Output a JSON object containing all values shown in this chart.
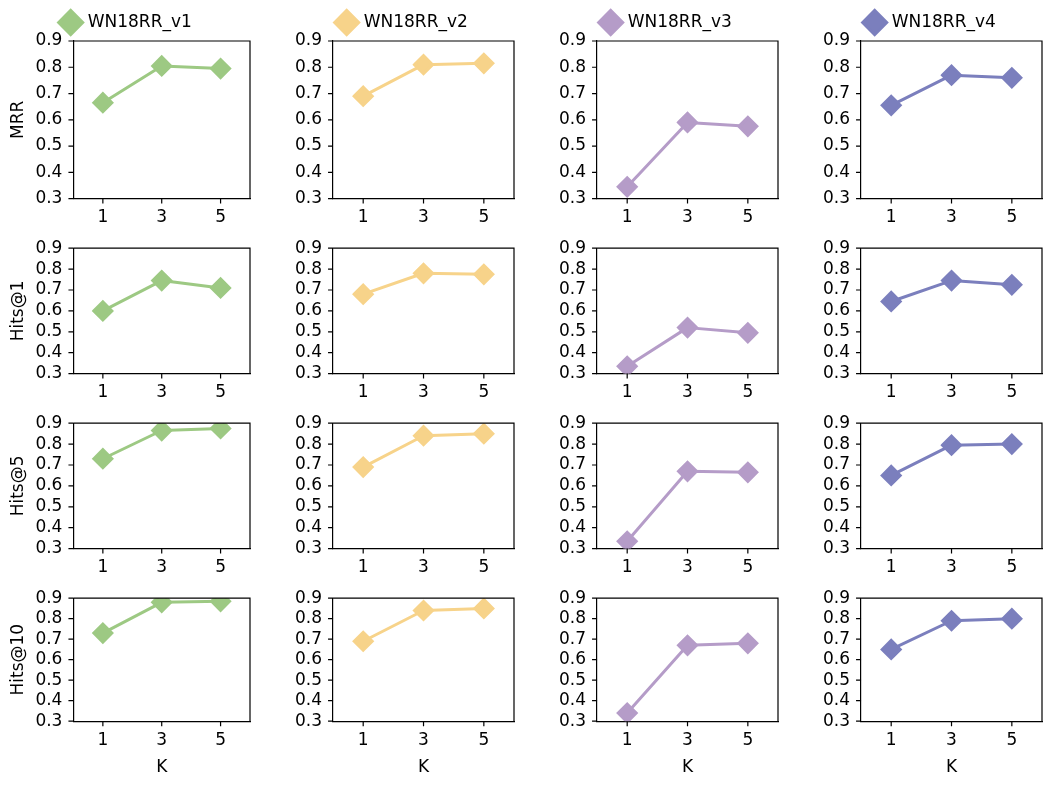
{
  "chart_data": [
    {
      "type": "line",
      "categories": [
        "1",
        "3",
        "5"
      ],
      "ylabel": "MRR",
      "ylim": [
        0.3,
        0.9
      ],
      "yticks": [
        0.3,
        0.4,
        0.5,
        0.6,
        0.7,
        0.8,
        0.9
      ],
      "grid": false,
      "marker": "diamond",
      "legend": "top",
      "series": [
        {
          "name": "WN18RR_v1",
          "color": "#9dc983",
          "values": [
            0.665,
            0.805,
            0.795
          ]
        }
      ]
    },
    {
      "type": "line",
      "categories": [
        "1",
        "3",
        "5"
      ],
      "ylim": [
        0.3,
        0.9
      ],
      "yticks": [
        0.3,
        0.4,
        0.5,
        0.6,
        0.7,
        0.8,
        0.9
      ],
      "grid": false,
      "marker": "diamond",
      "legend": "top",
      "series": [
        {
          "name": "WN18RR_v2",
          "color": "#f7d38a",
          "values": [
            0.69,
            0.81,
            0.815
          ]
        }
      ]
    },
    {
      "type": "line",
      "categories": [
        "1",
        "3",
        "5"
      ],
      "ylim": [
        0.3,
        0.9
      ],
      "yticks": [
        0.3,
        0.4,
        0.5,
        0.6,
        0.7,
        0.8,
        0.9
      ],
      "grid": false,
      "marker": "diamond",
      "legend": "top",
      "series": [
        {
          "name": "WN18RR_v3",
          "color": "#b59cc8",
          "values": [
            0.345,
            0.59,
            0.575
          ]
        }
      ]
    },
    {
      "type": "line",
      "categories": [
        "1",
        "3",
        "5"
      ],
      "ylim": [
        0.3,
        0.9
      ],
      "yticks": [
        0.3,
        0.4,
        0.5,
        0.6,
        0.7,
        0.8,
        0.9
      ],
      "grid": false,
      "marker": "diamond",
      "legend": "top",
      "series": [
        {
          "name": "WN18RR_v4",
          "color": "#7b7fbd",
          "values": [
            0.655,
            0.77,
            0.76
          ]
        }
      ]
    },
    {
      "type": "line",
      "categories": [
        "1",
        "3",
        "5"
      ],
      "ylabel": "Hits@1",
      "ylim": [
        0.3,
        0.9
      ],
      "yticks": [
        0.3,
        0.4,
        0.5,
        0.6,
        0.7,
        0.8,
        0.9
      ],
      "grid": false,
      "marker": "diamond",
      "series": [
        {
          "color": "#9dc983",
          "values": [
            0.6,
            0.745,
            0.71
          ]
        }
      ]
    },
    {
      "type": "line",
      "categories": [
        "1",
        "3",
        "5"
      ],
      "ylim": [
        0.3,
        0.9
      ],
      "yticks": [
        0.3,
        0.4,
        0.5,
        0.6,
        0.7,
        0.8,
        0.9
      ],
      "grid": false,
      "marker": "diamond",
      "series": [
        {
          "color": "#f7d38a",
          "values": [
            0.68,
            0.78,
            0.775
          ]
        }
      ]
    },
    {
      "type": "line",
      "categories": [
        "1",
        "3",
        "5"
      ],
      "ylim": [
        0.3,
        0.9
      ],
      "yticks": [
        0.3,
        0.4,
        0.5,
        0.6,
        0.7,
        0.8,
        0.9
      ],
      "grid": false,
      "marker": "diamond",
      "series": [
        {
          "color": "#b59cc8",
          "values": [
            0.335,
            0.52,
            0.495
          ]
        }
      ]
    },
    {
      "type": "line",
      "categories": [
        "1",
        "3",
        "5"
      ],
      "ylim": [
        0.3,
        0.9
      ],
      "yticks": [
        0.3,
        0.4,
        0.5,
        0.6,
        0.7,
        0.8,
        0.9
      ],
      "grid": false,
      "marker": "diamond",
      "series": [
        {
          "color": "#7b7fbd",
          "values": [
            0.645,
            0.745,
            0.725
          ]
        }
      ]
    },
    {
      "type": "line",
      "categories": [
        "1",
        "3",
        "5"
      ],
      "ylabel": "Hits@5",
      "ylim": [
        0.3,
        0.9
      ],
      "yticks": [
        0.3,
        0.4,
        0.5,
        0.6,
        0.7,
        0.8,
        0.9
      ],
      "grid": false,
      "marker": "diamond",
      "series": [
        {
          "color": "#9dc983",
          "values": [
            0.73,
            0.865,
            0.875
          ]
        }
      ]
    },
    {
      "type": "line",
      "categories": [
        "1",
        "3",
        "5"
      ],
      "ylim": [
        0.3,
        0.9
      ],
      "yticks": [
        0.3,
        0.4,
        0.5,
        0.6,
        0.7,
        0.8,
        0.9
      ],
      "grid": false,
      "marker": "diamond",
      "series": [
        {
          "color": "#f7d38a",
          "values": [
            0.69,
            0.84,
            0.85
          ]
        }
      ]
    },
    {
      "type": "line",
      "categories": [
        "1",
        "3",
        "5"
      ],
      "ylim": [
        0.3,
        0.9
      ],
      "yticks": [
        0.3,
        0.4,
        0.5,
        0.6,
        0.7,
        0.8,
        0.9
      ],
      "grid": false,
      "marker": "diamond",
      "series": [
        {
          "color": "#b59cc8",
          "values": [
            0.335,
            0.67,
            0.665
          ]
        }
      ]
    },
    {
      "type": "line",
      "categories": [
        "1",
        "3",
        "5"
      ],
      "ylim": [
        0.3,
        0.9
      ],
      "yticks": [
        0.3,
        0.4,
        0.5,
        0.6,
        0.7,
        0.8,
        0.9
      ],
      "grid": false,
      "marker": "diamond",
      "series": [
        {
          "color": "#7b7fbd",
          "values": [
            0.65,
            0.795,
            0.8
          ]
        }
      ]
    },
    {
      "type": "line",
      "categories": [
        "1",
        "3",
        "5"
      ],
      "xlabel": "K",
      "ylabel": "Hits@10",
      "ylim": [
        0.3,
        0.9
      ],
      "yticks": [
        0.3,
        0.4,
        0.5,
        0.6,
        0.7,
        0.8,
        0.9
      ],
      "grid": false,
      "marker": "diamond",
      "series": [
        {
          "color": "#9dc983",
          "values": [
            0.73,
            0.88,
            0.885
          ]
        }
      ]
    },
    {
      "type": "line",
      "categories": [
        "1",
        "3",
        "5"
      ],
      "xlabel": "K",
      "ylim": [
        0.3,
        0.9
      ],
      "yticks": [
        0.3,
        0.4,
        0.5,
        0.6,
        0.7,
        0.8,
        0.9
      ],
      "grid": false,
      "marker": "diamond",
      "series": [
        {
          "color": "#f7d38a",
          "values": [
            0.69,
            0.84,
            0.85
          ]
        }
      ]
    },
    {
      "type": "line",
      "categories": [
        "1",
        "3",
        "5"
      ],
      "xlabel": "K",
      "ylim": [
        0.3,
        0.9
      ],
      "yticks": [
        0.3,
        0.4,
        0.5,
        0.6,
        0.7,
        0.8,
        0.9
      ],
      "grid": false,
      "marker": "diamond",
      "series": [
        {
          "color": "#b59cc8",
          "values": [
            0.34,
            0.67,
            0.68
          ]
        }
      ]
    },
    {
      "type": "line",
      "categories": [
        "1",
        "3",
        "5"
      ],
      "xlabel": "K",
      "ylim": [
        0.3,
        0.9
      ],
      "yticks": [
        0.3,
        0.4,
        0.5,
        0.6,
        0.7,
        0.8,
        0.9
      ],
      "grid": false,
      "marker": "diamond",
      "series": [
        {
          "color": "#7b7fbd",
          "values": [
            0.65,
            0.79,
            0.8
          ]
        }
      ]
    }
  ]
}
